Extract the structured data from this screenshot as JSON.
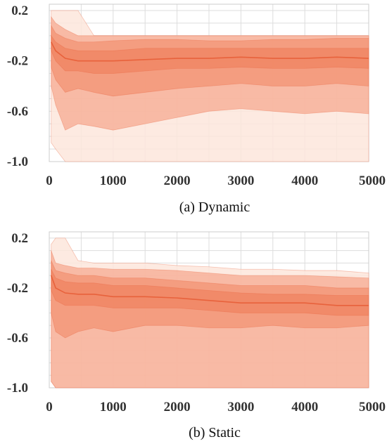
{
  "colors": {
    "band_outer": "#fde6dc",
    "band_wide": "#f6a084",
    "band_mid": "#f28a68",
    "band_inner": "#ee7a55",
    "median": "#e8623c",
    "grid": "#dddddd",
    "axis": "#cccccc"
  },
  "chart_data": [
    {
      "type": "area",
      "caption": "(a) Dynamic",
      "xlim": [
        0,
        5000
      ],
      "ylim": [
        -1.0,
        0.25
      ],
      "x_ticks": [
        "0",
        "1000",
        "2000",
        "3000",
        "4000",
        "5000"
      ],
      "y_ticks": [
        "0.2",
        "-0.2",
        "-0.6",
        "-1.0"
      ],
      "y_tick_values": [
        0.2,
        -0.2,
        -0.6,
        -1.0
      ],
      "grid": true,
      "x": [
        30,
        100,
        250,
        450,
        700,
        1000,
        1500,
        2000,
        2500,
        3000,
        3500,
        4000,
        4500,
        5000
      ],
      "series": [
        {
          "band": "outer",
          "upper": [
            0.2,
            0.2,
            0.2,
            0.2,
            0.0,
            0.0,
            0.0,
            0.0,
            0.0,
            0.0,
            0.0,
            0.0,
            0.0,
            0.0
          ],
          "lower": [
            -0.85,
            -0.9,
            -1.0,
            -1.0,
            -1.0,
            -1.0,
            -1.0,
            -1.0,
            -1.0,
            -1.0,
            -1.0,
            -1.0,
            -1.0,
            -1.0
          ]
        },
        {
          "band": "wide",
          "upper": [
            0.15,
            0.1,
            0.05,
            0.0,
            0.0,
            0.0,
            0.0,
            0.0,
            0.0,
            0.0,
            0.0,
            0.0,
            0.0,
            0.0
          ],
          "lower": [
            -0.4,
            -0.55,
            -0.75,
            -0.7,
            -0.72,
            -0.75,
            -0.7,
            -0.65,
            -0.6,
            -0.58,
            -0.6,
            -0.62,
            -0.6,
            -0.62
          ]
        },
        {
          "band": "mid",
          "upper": [
            0.08,
            0.02,
            -0.02,
            -0.05,
            -0.05,
            -0.04,
            -0.03,
            -0.03,
            -0.04,
            -0.04,
            -0.03,
            -0.03,
            -0.02,
            -0.02
          ],
          "lower": [
            -0.25,
            -0.35,
            -0.45,
            -0.42,
            -0.45,
            -0.48,
            -0.45,
            -0.42,
            -0.4,
            -0.38,
            -0.4,
            -0.4,
            -0.38,
            -0.4
          ]
        },
        {
          "band": "inner",
          "upper": [
            0.0,
            -0.05,
            -0.1,
            -0.12,
            -0.12,
            -0.12,
            -0.1,
            -0.1,
            -0.1,
            -0.1,
            -0.1,
            -0.1,
            -0.1,
            -0.1
          ],
          "lower": [
            -0.12,
            -0.2,
            -0.28,
            -0.28,
            -0.3,
            -0.3,
            -0.28,
            -0.26,
            -0.26,
            -0.25,
            -0.26,
            -0.26,
            -0.25,
            -0.26
          ]
        },
        {
          "band": "median",
          "values": [
            -0.05,
            -0.12,
            -0.18,
            -0.2,
            -0.2,
            -0.2,
            -0.19,
            -0.18,
            -0.18,
            -0.17,
            -0.18,
            -0.18,
            -0.17,
            -0.18
          ]
        }
      ]
    },
    {
      "type": "area",
      "caption": "(b) Static",
      "xlim": [
        0,
        5000
      ],
      "ylim": [
        -1.0,
        0.25
      ],
      "x_ticks": [
        "0",
        "1000",
        "2000",
        "3000",
        "4000",
        "5000"
      ],
      "y_ticks": [
        "0.2",
        "-0.2",
        "-0.6",
        "-1.0"
      ],
      "y_tick_values": [
        0.2,
        -0.2,
        -0.6,
        -1.0
      ],
      "grid": true,
      "x": [
        30,
        100,
        250,
        450,
        700,
        1000,
        1500,
        2000,
        2500,
        3000,
        3500,
        4000,
        4500,
        5000
      ],
      "series": [
        {
          "band": "outer",
          "upper": [
            0.15,
            0.2,
            0.2,
            0.02,
            0.0,
            0.0,
            0.0,
            -0.02,
            -0.03,
            -0.05,
            -0.05,
            -0.06,
            -0.06,
            -0.08
          ],
          "lower": [
            -0.95,
            -1.0,
            -1.0,
            -1.0,
            -1.0,
            -1.0,
            -1.0,
            -1.0,
            -1.0,
            -1.0,
            -1.0,
            -1.0,
            -1.0,
            -1.0
          ]
        },
        {
          "band": "wide",
          "upper": [
            0.1,
            0.0,
            -0.02,
            -0.04,
            -0.04,
            -0.05,
            -0.05,
            -0.06,
            -0.08,
            -0.1,
            -0.1,
            -0.1,
            -0.11,
            -0.12
          ]
        },
        {
          "band": "mid",
          "upper": [
            0.02,
            -0.06,
            -0.08,
            -0.1,
            -0.1,
            -0.12,
            -0.12,
            -0.14,
            -0.16,
            -0.18,
            -0.18,
            -0.18,
            -0.2,
            -0.2
          ],
          "lower": [
            -0.4,
            -0.55,
            -0.6,
            -0.55,
            -0.52,
            -0.55,
            -0.5,
            -0.5,
            -0.52,
            -0.52,
            -0.5,
            -0.52,
            -0.52,
            -0.5
          ]
        },
        {
          "band": "inner",
          "upper": [
            -0.05,
            -0.12,
            -0.15,
            -0.16,
            -0.16,
            -0.18,
            -0.18,
            -0.2,
            -0.22,
            -0.24,
            -0.25,
            -0.25,
            -0.26,
            -0.26
          ],
          "lower": [
            -0.22,
            -0.3,
            -0.34,
            -0.34,
            -0.34,
            -0.36,
            -0.36,
            -0.36,
            -0.38,
            -0.4,
            -0.4,
            -0.4,
            -0.42,
            -0.42
          ]
        },
        {
          "band": "median",
          "values": [
            -0.1,
            -0.2,
            -0.24,
            -0.25,
            -0.25,
            -0.27,
            -0.27,
            -0.28,
            -0.3,
            -0.32,
            -0.32,
            -0.32,
            -0.34,
            -0.34
          ]
        }
      ]
    }
  ]
}
